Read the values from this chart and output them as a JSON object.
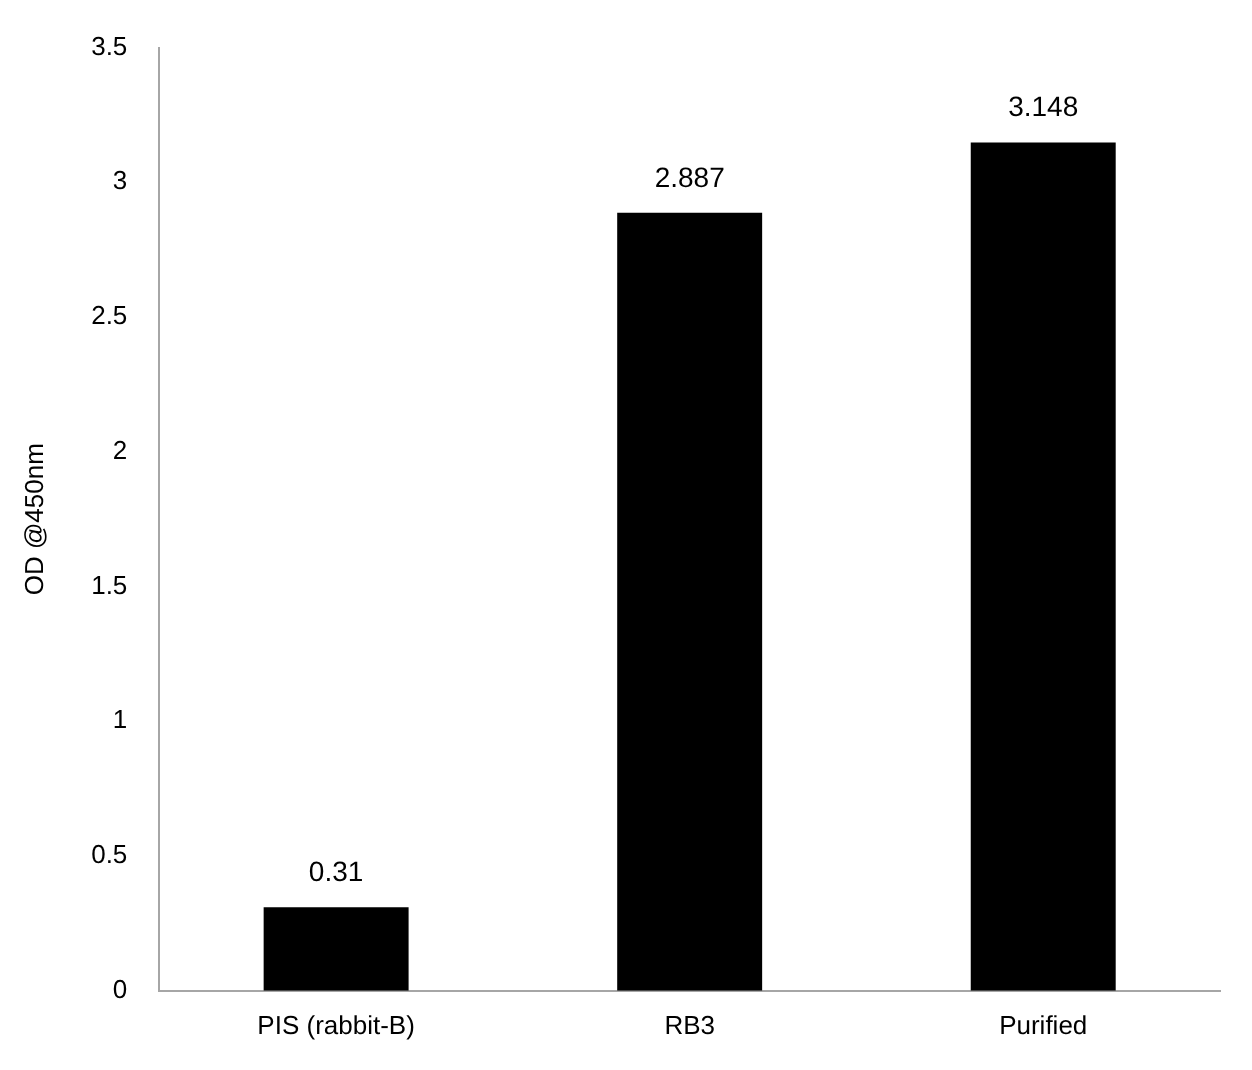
{
  "chart_data": {
    "type": "bar",
    "ylabel": "OD @450nm",
    "categories": [
      "PIS (rabbit-B)",
      "RB3",
      "Purified"
    ],
    "values": [
      0.31,
      2.887,
      3.148
    ],
    "color": "#000000",
    "ylim": [
      0,
      3.5
    ],
    "yticks": [
      0,
      0.5,
      1,
      1.5,
      2,
      2.5,
      3,
      3.5
    ],
    "grid": false,
    "legend": false,
    "data_labels": true
  }
}
